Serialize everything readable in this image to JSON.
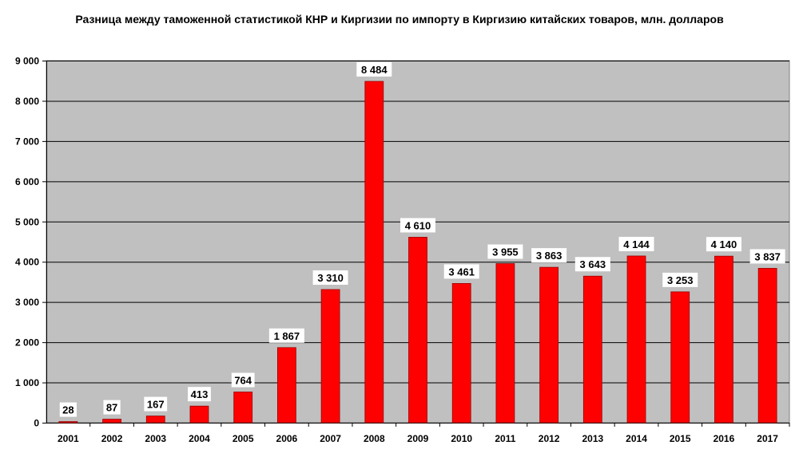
{
  "chart_data": {
    "type": "bar",
    "title": "Разница между таможенной статистикой КНР и Киргизии по импорту в Киргизию китайских товаров, млн. долларов",
    "categories": [
      "2001",
      "2002",
      "2003",
      "2004",
      "2005",
      "2006",
      "2007",
      "2008",
      "2009",
      "2010",
      "2011",
      "2012",
      "2013",
      "2014",
      "2015",
      "2016",
      "2017"
    ],
    "values": [
      28,
      87,
      167,
      413,
      764,
      1867,
      3310,
      8484,
      4610,
      3461,
      3955,
      3863,
      3643,
      4144,
      3253,
      4140,
      3837
    ],
    "value_labels": [
      "28",
      "87",
      "167",
      "413",
      "764",
      "1 867",
      "3 310",
      "8 484",
      "4 610",
      "3 461",
      "3 955",
      "3 863",
      "3 643",
      "4 144",
      "3 253",
      "4 140",
      "3 837"
    ],
    "y_ticks": [
      0,
      1000,
      2000,
      3000,
      4000,
      5000,
      6000,
      7000,
      8000,
      9000
    ],
    "y_tick_labels": [
      "0",
      "1 000",
      "2 000",
      "3 000",
      "4 000",
      "5 000",
      "6 000",
      "7 000",
      "8 000",
      "9 000"
    ],
    "ylim": [
      0,
      9000
    ],
    "xlabel": "",
    "ylabel": "",
    "grid": true,
    "legend": "none",
    "colors": {
      "bar": "#ff0000",
      "bar_stroke": "#990000",
      "plot_bg": "#c0c0c0",
      "grid": "#000000"
    }
  }
}
